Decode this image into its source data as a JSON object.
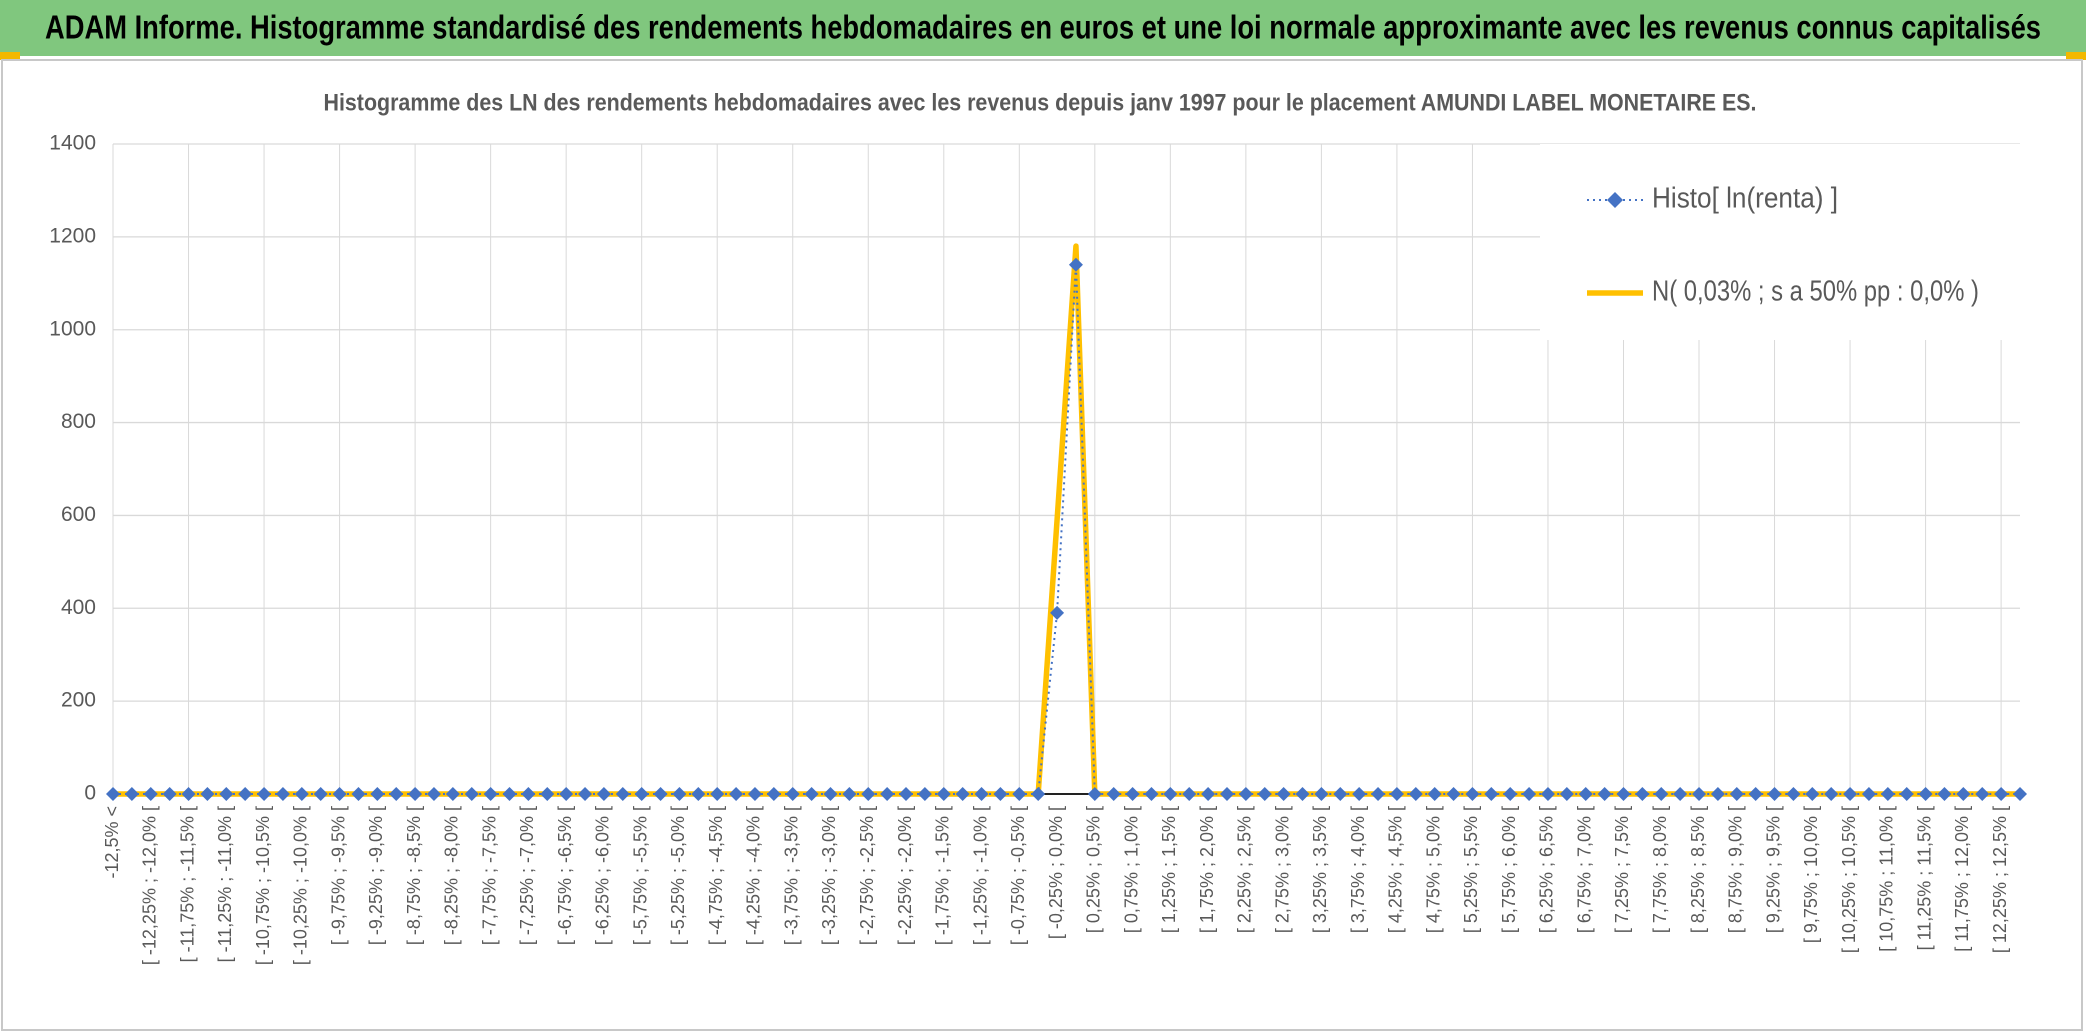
{
  "header": {
    "title": "ADAM Informe. Histogramme standardisé des rendements hebdomadaires en euros et une loi normale approximante avec les revenus connus capitalisés"
  },
  "chart_data": {
    "type": "line",
    "title": "Histogramme des LN des rendements hebdomadaires avec les revenus depuis janv 1997 pour le placement AMUNDI LABEL MONETAIRE ES.",
    "categories": [
      "-12,5% <",
      null,
      "[ -12,25% ; -12,0% [",
      null,
      "[ -11,75% ; -11,5% [",
      null,
      "[ -11,25% ; -11,0% [",
      null,
      "[ -10,75% ; -10,5% [",
      null,
      "[ -10,25% ; -10,0% [",
      null,
      "[ -9,75% ; -9,5% [",
      null,
      "[ -9,25% ; -9,0% [",
      null,
      "[ -8,75% ; -8,5% [",
      null,
      "[ -8,25% ; -8,0% [",
      null,
      "[ -7,75% ; -7,5% [",
      null,
      "[ -7,25% ; -7,0% [",
      null,
      "[ -6,75% ; -6,5% [",
      null,
      "[ -6,25% ; -6,0% [",
      null,
      "[ -5,75% ; -5,5% [",
      null,
      "[ -5,25% ; -5,0% [",
      null,
      "[ -4,75% ; -4,5% [",
      null,
      "[ -4,25% ; -4,0% [",
      null,
      "[ -3,75% ; -3,5% [",
      null,
      "[ -3,25% ; -3,0% [",
      null,
      "[ -2,75% ; -2,5% [",
      null,
      "[ -2,25% ; -2,0% [",
      null,
      "[ -1,75% ; -1,5% [",
      null,
      "[ -1,25% ; -1,0% [",
      null,
      "[ -0,75% ; -0,5% [",
      null,
      "[ -0,25% ; 0,0% [",
      null,
      "[ 0,25% ; 0,5% [",
      null,
      "[ 0,75% ; 1,0% [",
      null,
      "[ 1,25% ; 1,5% [",
      null,
      "[ 1,75% ; 2,0% [",
      null,
      "[ 2,25% ; 2,5% [",
      null,
      "[ 2,75% ; 3,0% [",
      null,
      "[ 3,25% ; 3,5% [",
      null,
      "[ 3,75% ; 4,0% [",
      null,
      "[ 4,25% ; 4,5% [",
      null,
      "[ 4,75% ; 5,0% [",
      null,
      "[ 5,25% ; 5,5% [",
      null,
      "[ 5,75% ; 6,0% [",
      null,
      "[ 6,25% ; 6,5% [",
      null,
      "[ 6,75% ; 7,0% [",
      null,
      "[ 7,25% ; 7,5% [",
      null,
      "[ 7,75% ; 8,0% [",
      null,
      "[ 8,25% ; 8,5% [",
      null,
      "[ 8,75% ; 9,0% [",
      null,
      "[ 9,25% ; 9,5% [",
      null,
      "[ 9,75% ; 10,0% [",
      null,
      "[ 10,25% ; 10,5% [",
      null,
      "[ 10,75% ; 11,0% [",
      null,
      "[ 11,25% ; 11,5% [",
      null,
      "[ 11,75% ; 12,0% [",
      null,
      "[ 12,25% ; 12,5% [",
      null
    ],
    "series": [
      {
        "name": "Histo[ ln(renta) ]",
        "color": "#4472c4",
        "values": [
          0,
          0,
          0,
          0,
          0,
          0,
          0,
          0,
          0,
          0,
          0,
          0,
          0,
          0,
          0,
          0,
          0,
          0,
          0,
          0,
          0,
          0,
          0,
          0,
          0,
          0,
          0,
          0,
          0,
          0,
          0,
          0,
          0,
          0,
          0,
          0,
          0,
          0,
          0,
          0,
          0,
          0,
          0,
          0,
          0,
          0,
          0,
          0,
          0,
          0,
          390,
          1140,
          0,
          0,
          0,
          0,
          0,
          0,
          0,
          0,
          0,
          0,
          0,
          0,
          0,
          0,
          0,
          0,
          0,
          0,
          0,
          0,
          0,
          0,
          0,
          0,
          0,
          0,
          0,
          0,
          0,
          0,
          0,
          0,
          0,
          0,
          0,
          0,
          0,
          0,
          0,
          0,
          0,
          0,
          0,
          0,
          0,
          0,
          0,
          0,
          0,
          0
        ]
      },
      {
        "name": "N( 0,03% ; s a 50% pp : 0,0% )",
        "color": "#ffc000",
        "values": [
          0,
          0,
          0,
          0,
          0,
          0,
          0,
          0,
          0,
          0,
          0,
          0,
          0,
          0,
          0,
          0,
          0,
          0,
          0,
          0,
          0,
          0,
          0,
          0,
          0,
          0,
          0,
          0,
          0,
          0,
          0,
          0,
          0,
          0,
          0,
          0,
          0,
          0,
          0,
          0,
          0,
          0,
          0,
          0,
          0,
          0,
          0,
          0,
          0,
          0,
          590,
          1180,
          0,
          0,
          0,
          0,
          0,
          0,
          0,
          0,
          0,
          0,
          0,
          0,
          0,
          0,
          0,
          0,
          0,
          0,
          0,
          0,
          0,
          0,
          0,
          0,
          0,
          0,
          0,
          0,
          0,
          0,
          0,
          0,
          0,
          0,
          0,
          0,
          0,
          0,
          0,
          0,
          0,
          0,
          0,
          0,
          0,
          0,
          0,
          0,
          0,
          0
        ]
      }
    ],
    "ylim": [
      0,
      1400
    ],
    "yticks": [
      0,
      200,
      400,
      600,
      800,
      1000,
      1200,
      1400
    ],
    "grid": true,
    "legend": "top-right"
  }
}
